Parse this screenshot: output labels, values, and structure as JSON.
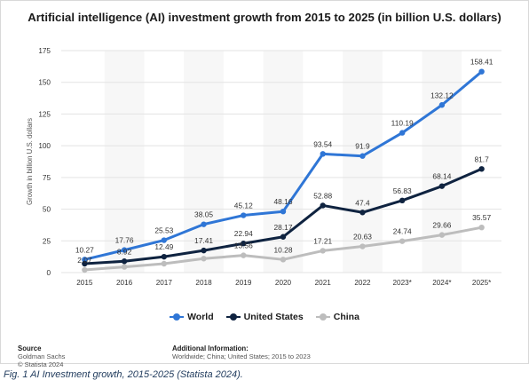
{
  "title": "Artificial intelligence (AI) investment growth from 2015 to 2025 (in billion U.S. dollars)",
  "caption": "Fig. 1 AI Investment growth, 2015-2025 (Statista 2024).",
  "source": {
    "heading": "Source",
    "lines": [
      "Goldman Sachs",
      "© Statista 2024"
    ]
  },
  "additional_info": {
    "heading": "Additional Information:",
    "text": "Worldwide; China; United States; 2015 to 2023"
  },
  "colors": {
    "World": "#2f76d6",
    "United States": "#0f2340",
    "China": "#bdbdbd",
    "grid": "#e3e3e3",
    "band": "#f7f7f7"
  },
  "chart_data": {
    "type": "line",
    "title": "Artificial intelligence (AI) investment growth from 2015 to 2025 (in billion U.S. dollars)",
    "xlabel": "",
    "ylabel": "Growth in billion U.S. dollars",
    "ylim": [
      0,
      175
    ],
    "yticks": [
      0,
      25,
      50,
      75,
      100,
      125,
      150,
      175
    ],
    "grid": true,
    "legend_position": "bottom",
    "categories": [
      "2015",
      "2016",
      "2017",
      "2018",
      "2019",
      "2020",
      "2021",
      "2022",
      "2023*",
      "2024*",
      "2025*"
    ],
    "series": [
      {
        "name": "World",
        "values": [
          10.27,
          17.76,
          25.53,
          38.05,
          45.12,
          48.16,
          93.54,
          91.9,
          110.19,
          132.12,
          158.41
        ],
        "labels": [
          "10.27",
          "17.76",
          "25.53",
          "38.05",
          "45.12",
          "48.16",
          "93.54",
          "91.9",
          "110.19",
          "132.12",
          "158.41"
        ]
      },
      {
        "name": "United States",
        "values": [
          7,
          8.92,
          12.49,
          17.41,
          22.94,
          28.17,
          52.88,
          47.4,
          56.83,
          68.14,
          81.7
        ],
        "labels": [
          "",
          "8.92",
          "12.49",
          "17.41",
          "22.94",
          "28.17",
          "52.88",
          "47.4",
          "56.83",
          "68.14",
          "81.7"
        ]
      },
      {
        "name": "China",
        "values": [
          2.07,
          4.5,
          7,
          11,
          13.56,
          10.28,
          17.21,
          20.63,
          24.74,
          29.66,
          35.57
        ],
        "labels": [
          "2.07",
          "",
          "",
          "",
          "13.56",
          "10.28",
          "17.21",
          "20.63",
          "24.74",
          "29.66",
          "35.57"
        ]
      }
    ]
  }
}
